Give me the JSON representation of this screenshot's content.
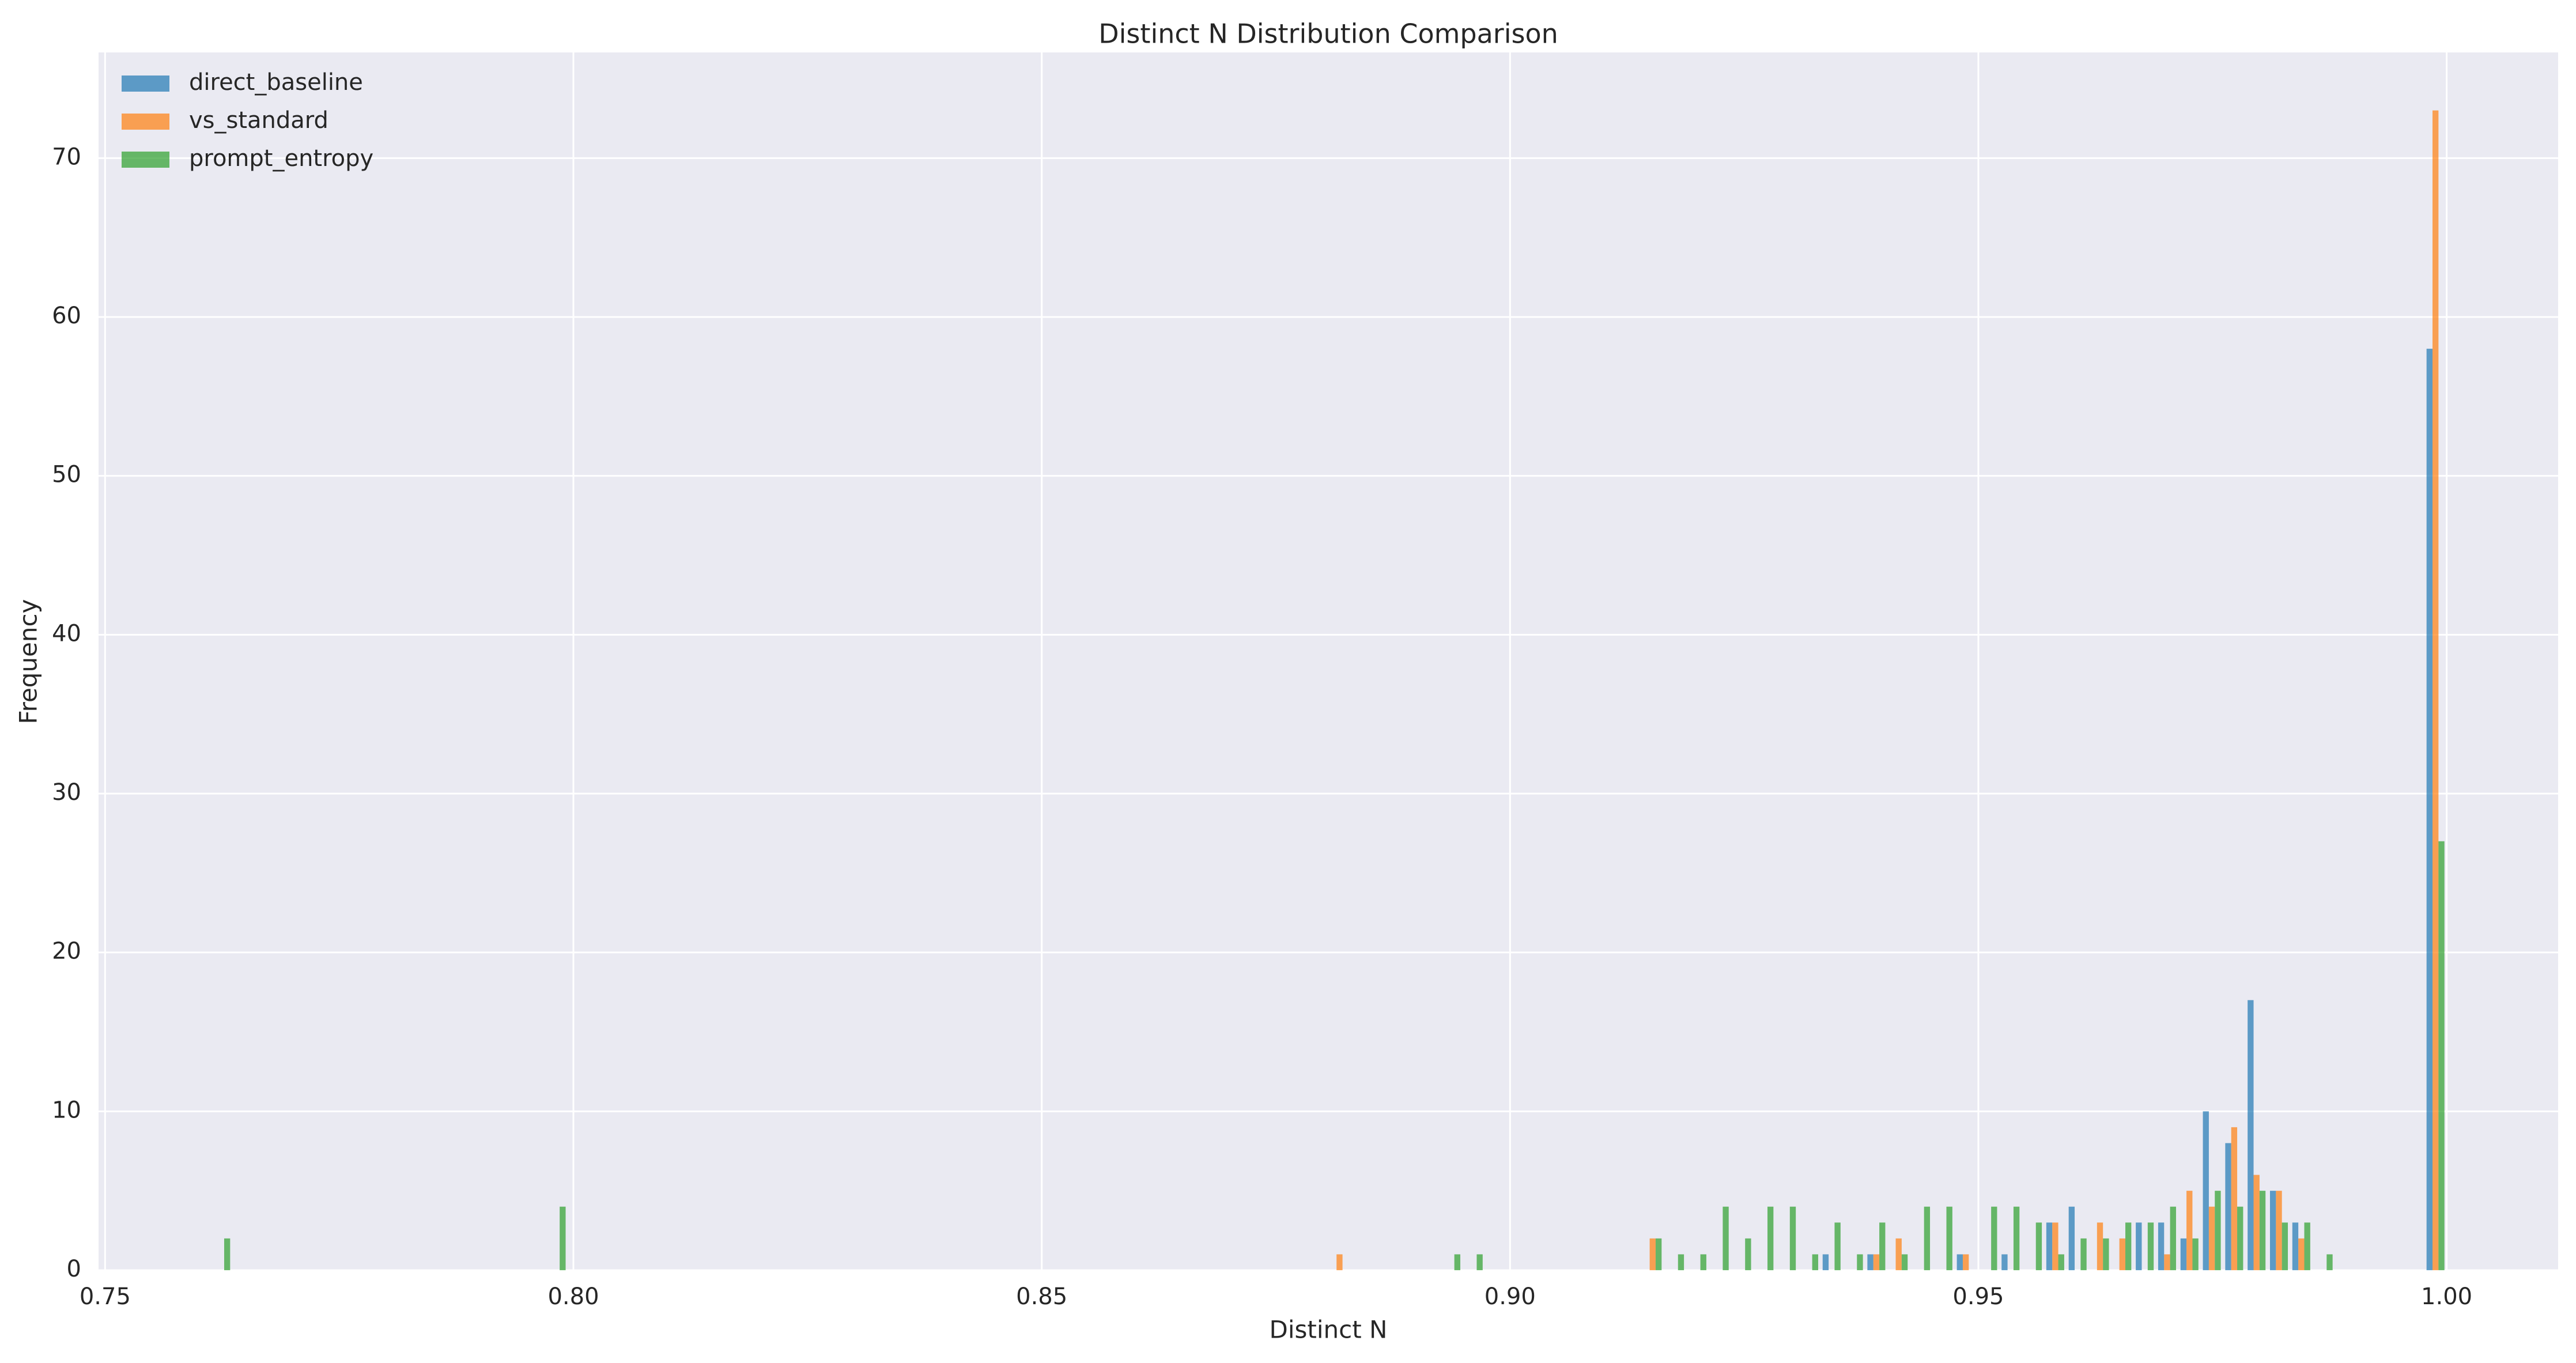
{
  "chart_data": {
    "type": "histogram",
    "title": "Distinct N Distribution Comparison",
    "x_label": "Distinct N",
    "y_label": "Frequency",
    "bins": [
      0.7612,
      0.763588,
      0.765976,
      0.768364,
      0.770752,
      0.77314,
      0.775528,
      0.777916,
      0.780304,
      0.782692,
      0.78508,
      0.787468,
      0.789856,
      0.792244,
      0.794632,
      0.79702,
      0.799408,
      0.801796,
      0.804184,
      0.806572,
      0.80896,
      0.811348,
      0.813736,
      0.816124,
      0.818512,
      0.8209,
      0.823288,
      0.825676,
      0.828064,
      0.830452,
      0.83284,
      0.835228,
      0.837616,
      0.840004,
      0.842392,
      0.84478,
      0.847168,
      0.849556,
      0.851944,
      0.854332,
      0.85672,
      0.859108,
      0.861496,
      0.863884,
      0.866272,
      0.86866,
      0.871048,
      0.873436,
      0.875824,
      0.878212,
      0.8806,
      0.882988,
      0.885376,
      0.887764,
      0.890152,
      0.89254,
      0.894928,
      0.897316,
      0.899704,
      0.902092,
      0.90448,
      0.906868,
      0.909256,
      0.911644,
      0.914032,
      0.91642,
      0.918808,
      0.921196,
      0.923584,
      0.925972,
      0.92836,
      0.930748,
      0.933136,
      0.935524,
      0.937912,
      0.9403,
      0.942688,
      0.945076,
      0.947464,
      0.949852,
      0.95224,
      0.954628,
      0.957016,
      0.959404,
      0.961792,
      0.96418,
      0.966568,
      0.968956,
      0.971344,
      0.973732,
      0.97612,
      0.978508,
      0.980896,
      0.983284,
      0.985672,
      0.98806,
      0.990448,
      0.992836,
      0.995224,
      0.997612,
      1.0
    ],
    "series": [
      {
        "name": "direct_baseline",
        "color": "#1f77b4",
        "values": [
          0,
          0,
          0,
          0,
          0,
          0,
          0,
          0,
          0,
          0,
          0,
          0,
          0,
          0,
          0,
          0,
          0,
          0,
          0,
          0,
          0,
          0,
          0,
          0,
          0,
          0,
          0,
          0,
          0,
          0,
          0,
          0,
          0,
          0,
          0,
          0,
          0,
          0,
          0,
          0,
          0,
          0,
          0,
          0,
          0,
          0,
          0,
          0,
          0,
          0,
          0,
          0,
          0,
          0,
          0,
          0,
          0,
          0,
          0,
          0,
          0,
          0,
          0,
          0,
          0,
          0,
          0,
          0,
          0,
          0,
          0,
          0,
          1,
          0,
          1,
          0,
          0,
          0,
          1,
          0,
          1,
          0,
          3,
          4,
          0,
          0,
          3,
          3,
          2,
          10,
          8,
          17,
          5,
          3,
          0,
          0,
          0,
          0,
          0,
          58
        ]
      },
      {
        "name": "vs_standard",
        "color": "#ff7f0e",
        "values": [
          0,
          0,
          0,
          0,
          0,
          0,
          0,
          0,
          0,
          0,
          0,
          0,
          0,
          0,
          0,
          0,
          0,
          0,
          0,
          0,
          0,
          0,
          0,
          0,
          0,
          0,
          0,
          0,
          0,
          0,
          0,
          0,
          0,
          0,
          0,
          0,
          0,
          0,
          0,
          0,
          0,
          0,
          0,
          0,
          0,
          0,
          0,
          0,
          0,
          0,
          1,
          0,
          0,
          0,
          0,
          0,
          0,
          0,
          0,
          0,
          0,
          0,
          0,
          0,
          2,
          0,
          0,
          0,
          0,
          0,
          0,
          0,
          0,
          0,
          1,
          2,
          0,
          0,
          1,
          0,
          0,
          0,
          3,
          0,
          3,
          2,
          0,
          1,
          5,
          4,
          9,
          6,
          5,
          2,
          0,
          0,
          0,
          0,
          0,
          73
        ]
      },
      {
        "name": "prompt_entropy",
        "color": "#2ca02c",
        "values": [
          2,
          0,
          0,
          0,
          0,
          0,
          0,
          0,
          0,
          0,
          0,
          0,
          0,
          0,
          0,
          4,
          0,
          0,
          0,
          0,
          0,
          0,
          0,
          0,
          0,
          0,
          0,
          0,
          0,
          0,
          0,
          0,
          0,
          0,
          0,
          0,
          0,
          0,
          0,
          0,
          0,
          0,
          0,
          0,
          0,
          0,
          0,
          0,
          0,
          0,
          0,
          0,
          0,
          0,
          0,
          1,
          1,
          0,
          0,
          0,
          0,
          0,
          0,
          0,
          2,
          1,
          1,
          4,
          2,
          4,
          4,
          1,
          3,
          1,
          3,
          1,
          4,
          4,
          0,
          4,
          4,
          3,
          1,
          2,
          2,
          3,
          3,
          4,
          2,
          5,
          4,
          5,
          3,
          3,
          1,
          0,
          0,
          0,
          0,
          27
        ]
      }
    ],
    "xlim": [
      0.7493,
      1.0119
    ],
    "ylim": [
      0,
      76.65
    ],
    "xticks": [
      0.75,
      {
        "value": 0.8,
        "label": "0.80"
      },
      0.85,
      {
        "value": 0.9,
        "label": "0.90"
      },
      0.95,
      {
        "value": 1.0,
        "label": "1.00"
      }
    ],
    "yticks": [
      0,
      10,
      20,
      30,
      40,
      50,
      60,
      70
    ],
    "grid": true,
    "legend": "upper-left",
    "opacity": 0.7
  }
}
